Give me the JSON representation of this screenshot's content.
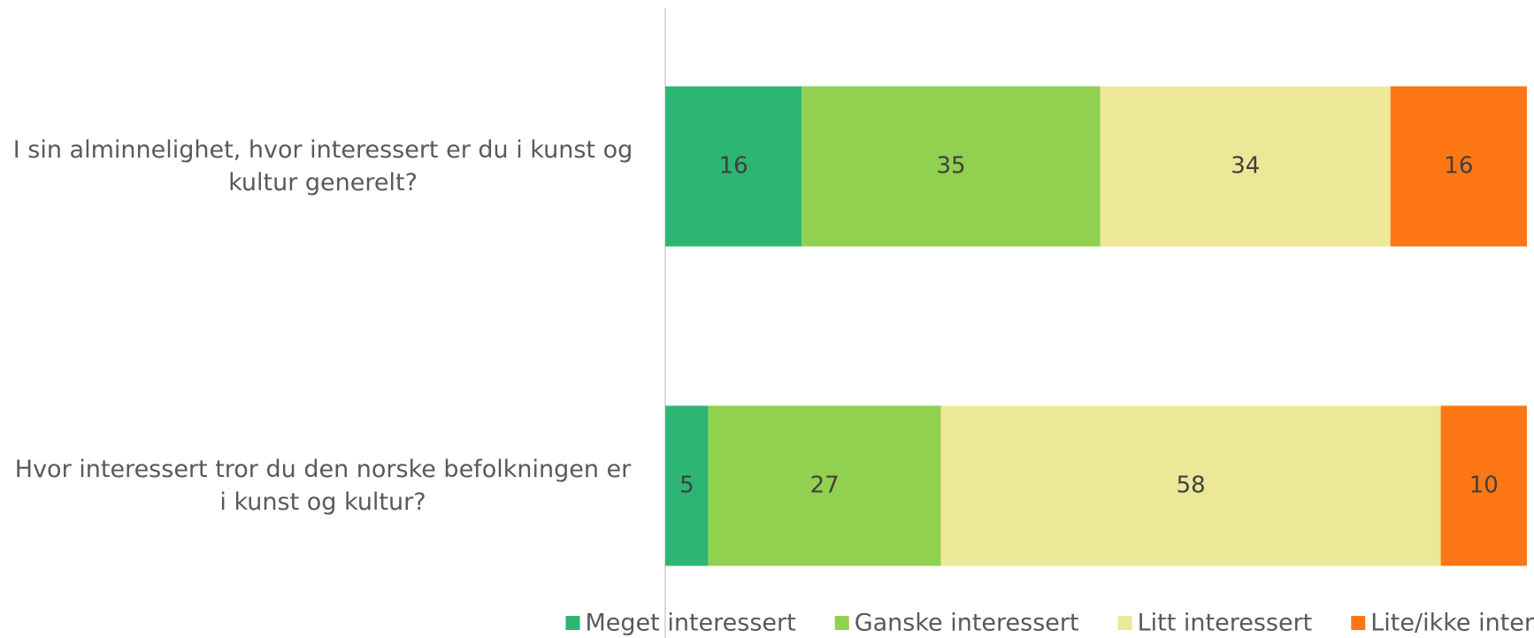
{
  "chart_data": {
    "type": "bar",
    "orientation": "horizontal",
    "stacked": "percent",
    "categories": [
      "I sin alminnelighet, hvor interessert er du i kunst og kultur generelt?",
      "Hvor interessert tror du den norske befolkningen er i kunst og kultur?"
    ],
    "series": [
      {
        "name": "Meget interessert",
        "color": "#2db673",
        "values": [
          16,
          5
        ]
      },
      {
        "name": "Ganske interessert",
        "color": "#92d050",
        "values": [
          35,
          27
        ]
      },
      {
        "name": "Litt interessert",
        "color": "#ede897",
        "values": [
          34,
          58
        ]
      },
      {
        "name": "Lite/ikke interessert",
        "color": "#fd7814",
        "values": [
          16,
          10
        ]
      }
    ],
    "legend": "bottom",
    "data_labels": true
  }
}
